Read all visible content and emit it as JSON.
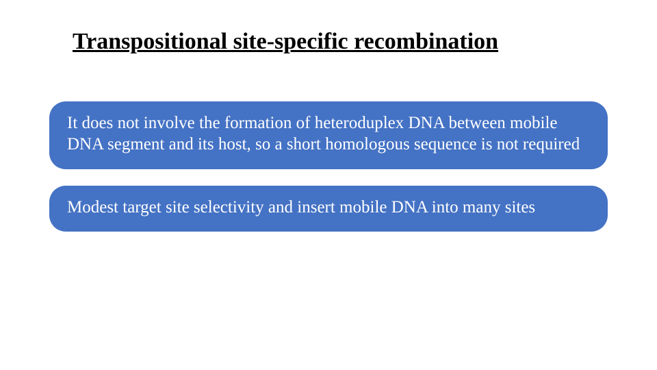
{
  "slide": {
    "title": "Transpositional site-specific recombination",
    "title_fontsize": 34,
    "title_color": "#000000",
    "title_fontweight": "bold",
    "title_underline": true,
    "background_color": "#ffffff",
    "points": [
      {
        "text": "It does not involve the formation of heteroduplex DNA between mobile DNA segment and its host, so a short homologous sequence is not required",
        "background_color": "#4472c4",
        "text_color": "#ffffff",
        "fontsize": 25,
        "border_radius": 24
      },
      {
        "text": "Modest target site selectivity and insert mobile DNA into many sites",
        "background_color": "#4472c4",
        "text_color": "#ffffff",
        "fontsize": 25,
        "border_radius": 24
      }
    ]
  }
}
